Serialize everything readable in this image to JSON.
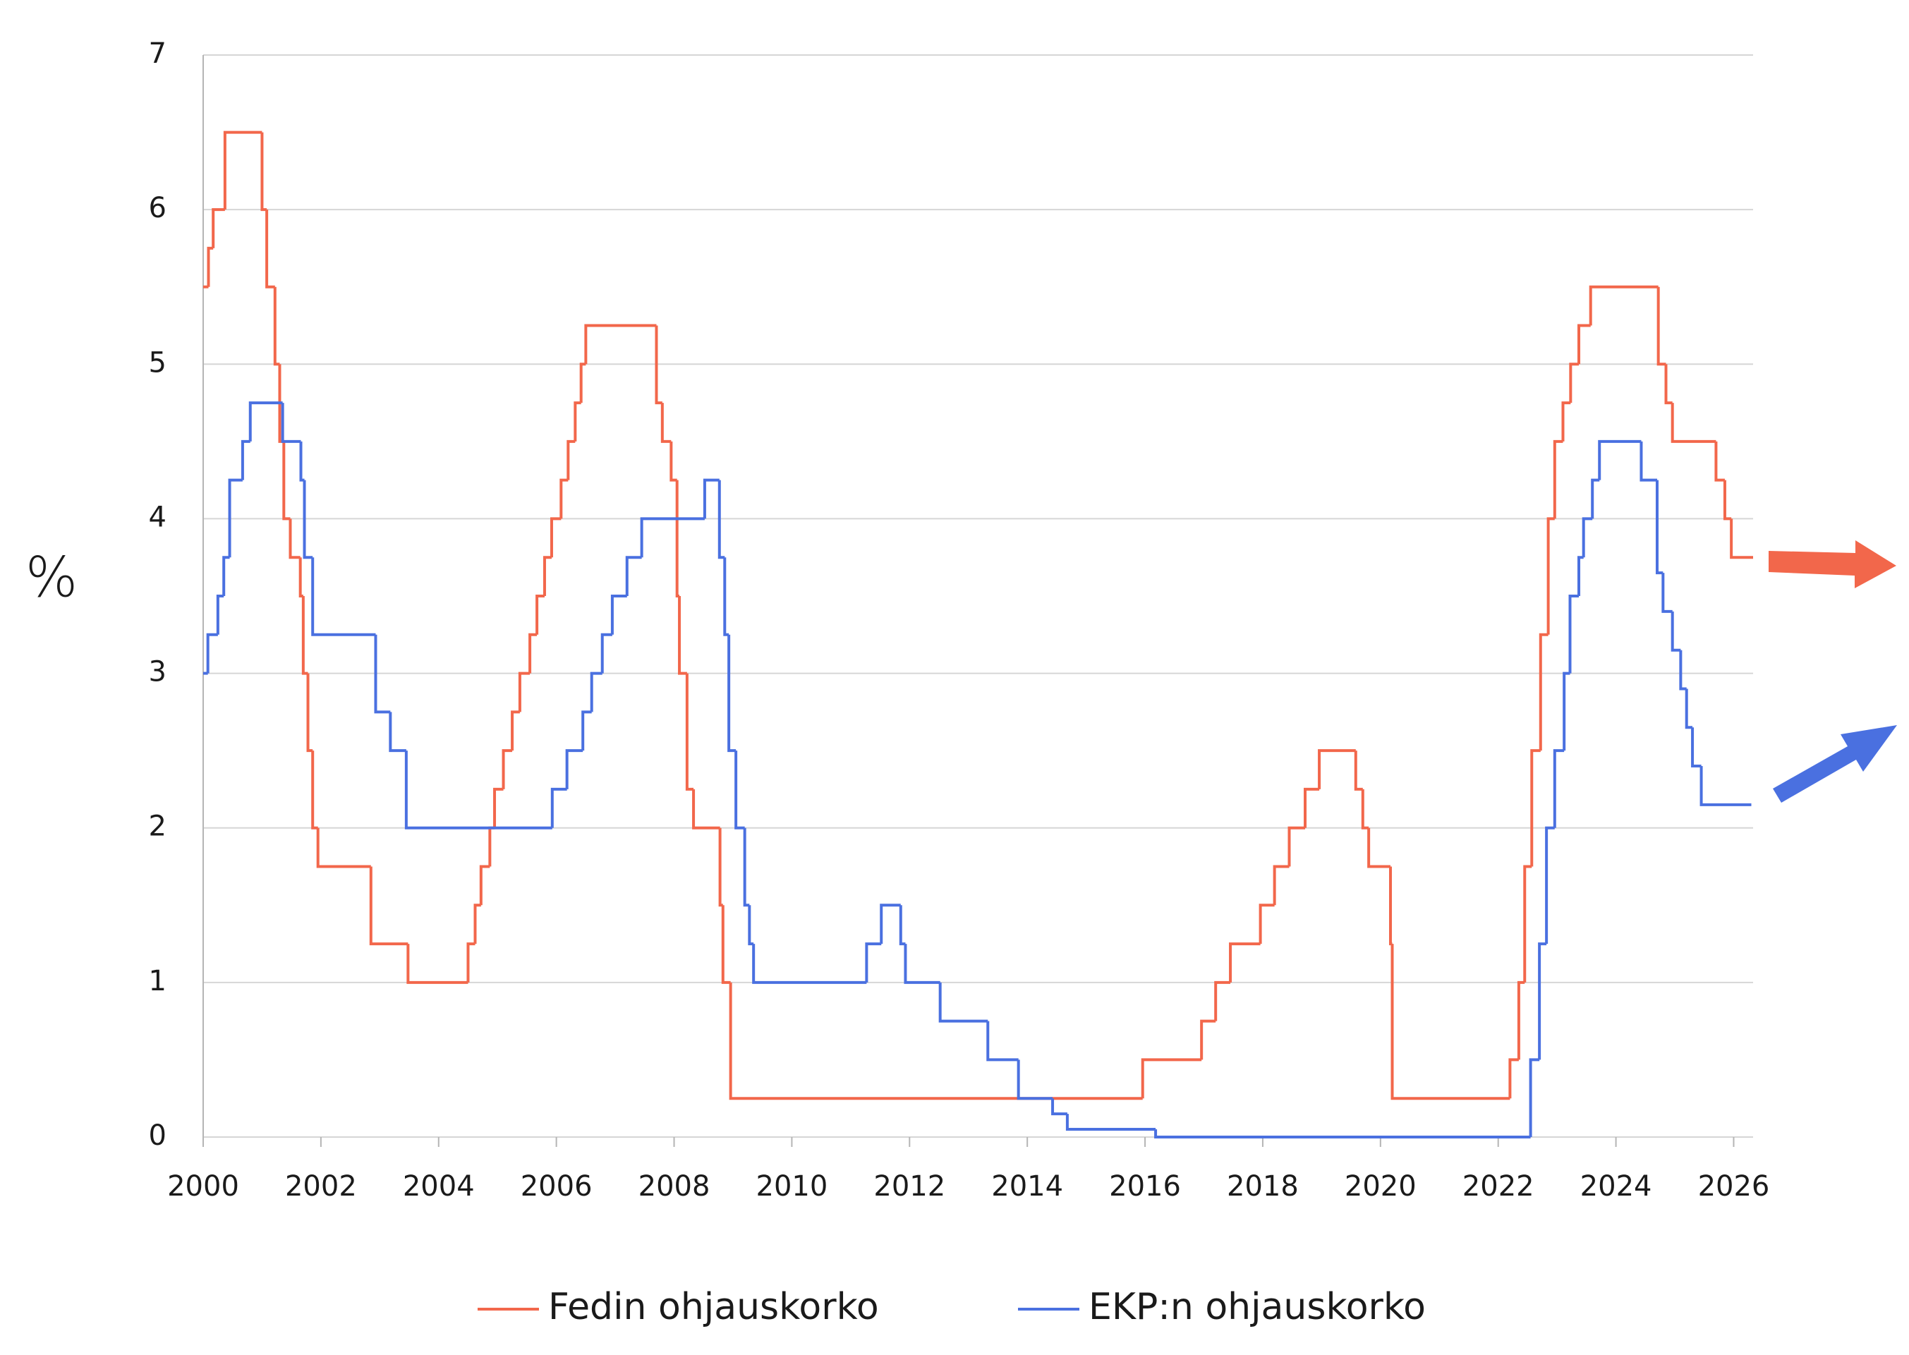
{
  "chart_data": {
    "type": "line",
    "drawstyle": "steps-post",
    "y_label": "%",
    "xlim": [
      2000,
      2026.33
    ],
    "xticks": [
      2000,
      2002,
      2004,
      2006,
      2008,
      2010,
      2012,
      2014,
      2016,
      2018,
      2020,
      2022,
      2024,
      2026
    ],
    "ylim": [
      0,
      7
    ],
    "yticks": [
      0,
      1,
      2,
      3,
      4,
      5,
      6,
      7
    ],
    "grid": true,
    "legend": "bottom",
    "series": [
      {
        "name": "Fedin ohjauskorko",
        "color": "#f2674b",
        "x": [
          2000.0,
          2000.09,
          2000.17,
          2000.37,
          2001.0,
          2001.08,
          2001.22,
          2001.3,
          2001.37,
          2001.48,
          2001.65,
          2001.7,
          2001.78,
          2001.86,
          2001.95,
          2002.85,
          2003.48,
          2004.5,
          2004.62,
          2004.72,
          2004.87,
          2004.95,
          2005.1,
          2005.25,
          2005.38,
          2005.55,
          2005.67,
          2005.8,
          2005.92,
          2006.08,
          2006.2,
          2006.32,
          2006.42,
          2006.5,
          2007.7,
          2007.8,
          2007.95,
          2008.05,
          2008.09,
          2008.22,
          2008.33,
          2008.78,
          2008.83,
          2008.96,
          2015.96,
          2016.96,
          2017.2,
          2017.45,
          2017.96,
          2018.2,
          2018.45,
          2018.72,
          2018.96,
          2019.58,
          2019.7,
          2019.8,
          2020.17,
          2020.2,
          2022.2,
          2022.35,
          2022.45,
          2022.57,
          2022.72,
          2022.85,
          2022.96,
          2023.1,
          2023.23,
          2023.37,
          2023.57,
          2024.72,
          2024.85,
          2024.96,
          2025.7,
          2025.85,
          2025.96,
          2026.33
        ],
        "values": [
          5.5,
          5.75,
          6.0,
          6.5,
          6.0,
          5.5,
          5.0,
          4.5,
          4.0,
          3.75,
          3.5,
          3.0,
          2.5,
          2.0,
          1.75,
          1.25,
          1.0,
          1.25,
          1.5,
          1.75,
          2.0,
          2.25,
          2.5,
          2.75,
          3.0,
          3.25,
          3.5,
          3.75,
          4.0,
          4.25,
          4.5,
          4.75,
          5.0,
          5.25,
          4.75,
          4.5,
          4.25,
          3.5,
          3.0,
          2.25,
          2.0,
          1.5,
          1.0,
          0.25,
          0.5,
          0.75,
          1.0,
          1.25,
          1.5,
          1.75,
          2.0,
          2.25,
          2.5,
          2.25,
          2.0,
          1.75,
          1.25,
          0.25,
          0.5,
          1.0,
          1.75,
          2.5,
          3.25,
          4.0,
          4.5,
          4.75,
          5.0,
          5.25,
          5.5,
          5.0,
          4.75,
          4.5,
          4.25,
          4.0,
          3.75,
          3.75
        ]
      },
      {
        "name": "EKP:n ohjauskorko",
        "color": "#4a70e0",
        "x": [
          2000.0,
          2000.08,
          2000.25,
          2000.35,
          2000.45,
          2000.67,
          2000.8,
          2001.35,
          2001.66,
          2001.72,
          2001.86,
          2002.93,
          2003.18,
          2003.45,
          2005.93,
          2006.18,
          2006.45,
          2006.6,
          2006.78,
          2006.95,
          2007.2,
          2007.45,
          2008.52,
          2008.77,
          2008.86,
          2008.93,
          2009.05,
          2009.2,
          2009.28,
          2009.35,
          2011.27,
          2011.52,
          2011.85,
          2011.93,
          2012.52,
          2013.33,
          2013.85,
          2014.43,
          2014.68,
          2016.18,
          2022.55,
          2022.7,
          2022.82,
          2022.96,
          2023.12,
          2023.22,
          2023.37,
          2023.45,
          2023.6,
          2023.72,
          2024.43,
          2024.7,
          2024.8,
          2024.96,
          2025.1,
          2025.2,
          2025.3,
          2025.45,
          2026.3
        ],
        "values": [
          3.0,
          3.25,
          3.5,
          3.75,
          4.25,
          4.5,
          4.75,
          4.5,
          4.25,
          3.75,
          3.25,
          2.75,
          2.5,
          2.0,
          2.25,
          2.5,
          2.75,
          3.0,
          3.25,
          3.5,
          3.75,
          4.0,
          4.25,
          3.75,
          3.25,
          2.5,
          2.0,
          1.5,
          1.25,
          1.0,
          1.25,
          1.5,
          1.25,
          1.0,
          0.75,
          0.5,
          0.25,
          0.15,
          0.05,
          0.0,
          0.5,
          1.25,
          2.0,
          2.5,
          3.0,
          3.5,
          3.75,
          4.0,
          4.25,
          4.5,
          4.25,
          3.65,
          3.4,
          3.15,
          2.9,
          2.65,
          2.4,
          2.15,
          2.15
        ]
      }
    ]
  }
}
